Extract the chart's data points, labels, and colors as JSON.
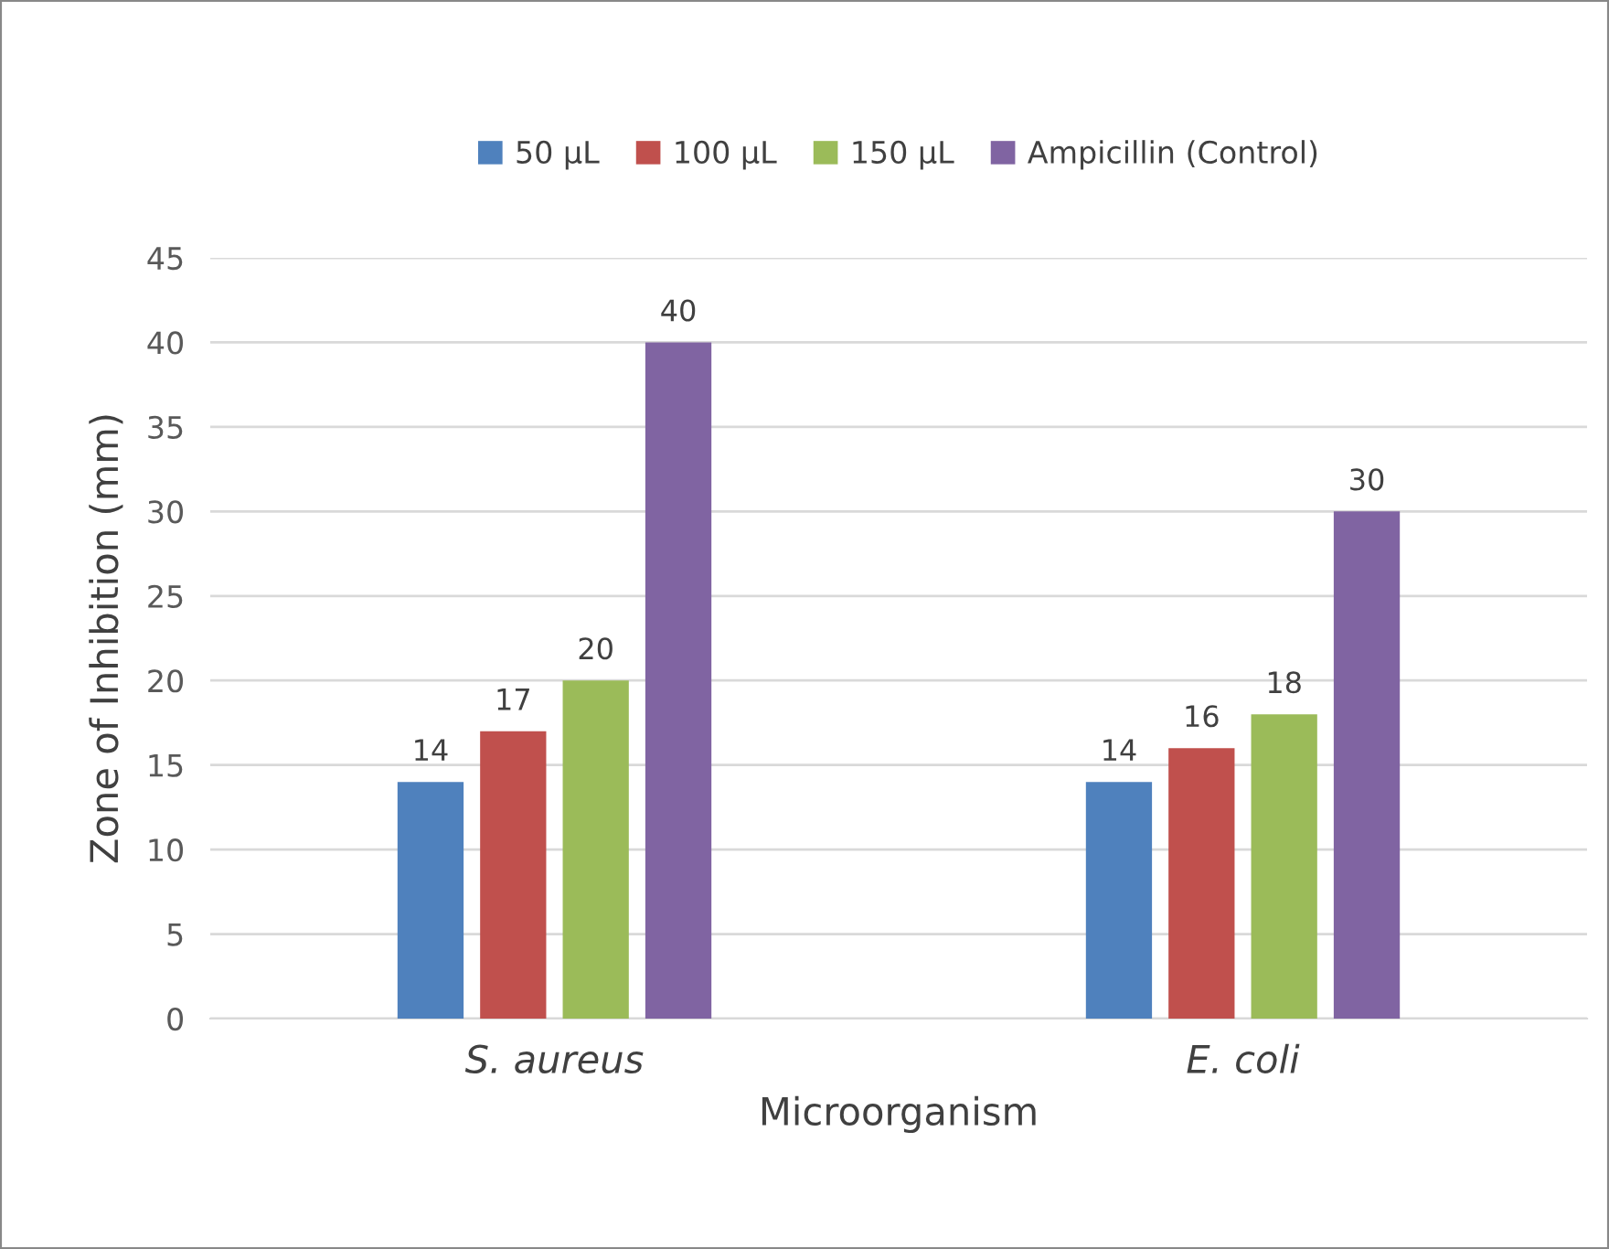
{
  "chart_data": {
    "type": "bar",
    "xlabel": "Microorganism",
    "ylabel": "Zone of Inhibition (mm)",
    "categories": [
      "S. aureus",
      "E. coli"
    ],
    "series": [
      {
        "name": "50 µL",
        "color": "#4f81bd",
        "values": [
          14,
          14
        ]
      },
      {
        "name": "100 µL",
        "color": "#c0504d",
        "values": [
          17,
          16
        ]
      },
      {
        "name": "150 µL",
        "color": "#9bbb59",
        "values": [
          20,
          18
        ]
      },
      {
        "name": "Ampicillin (Control)",
        "color": "#8064a2",
        "values": [
          40,
          30
        ]
      }
    ],
    "ylim": [
      0,
      45
    ],
    "yticks": [
      0,
      5,
      10,
      15,
      20,
      25,
      30,
      35,
      40,
      45
    ],
    "grid": "y",
    "legend": "top",
    "data_labels": true
  }
}
